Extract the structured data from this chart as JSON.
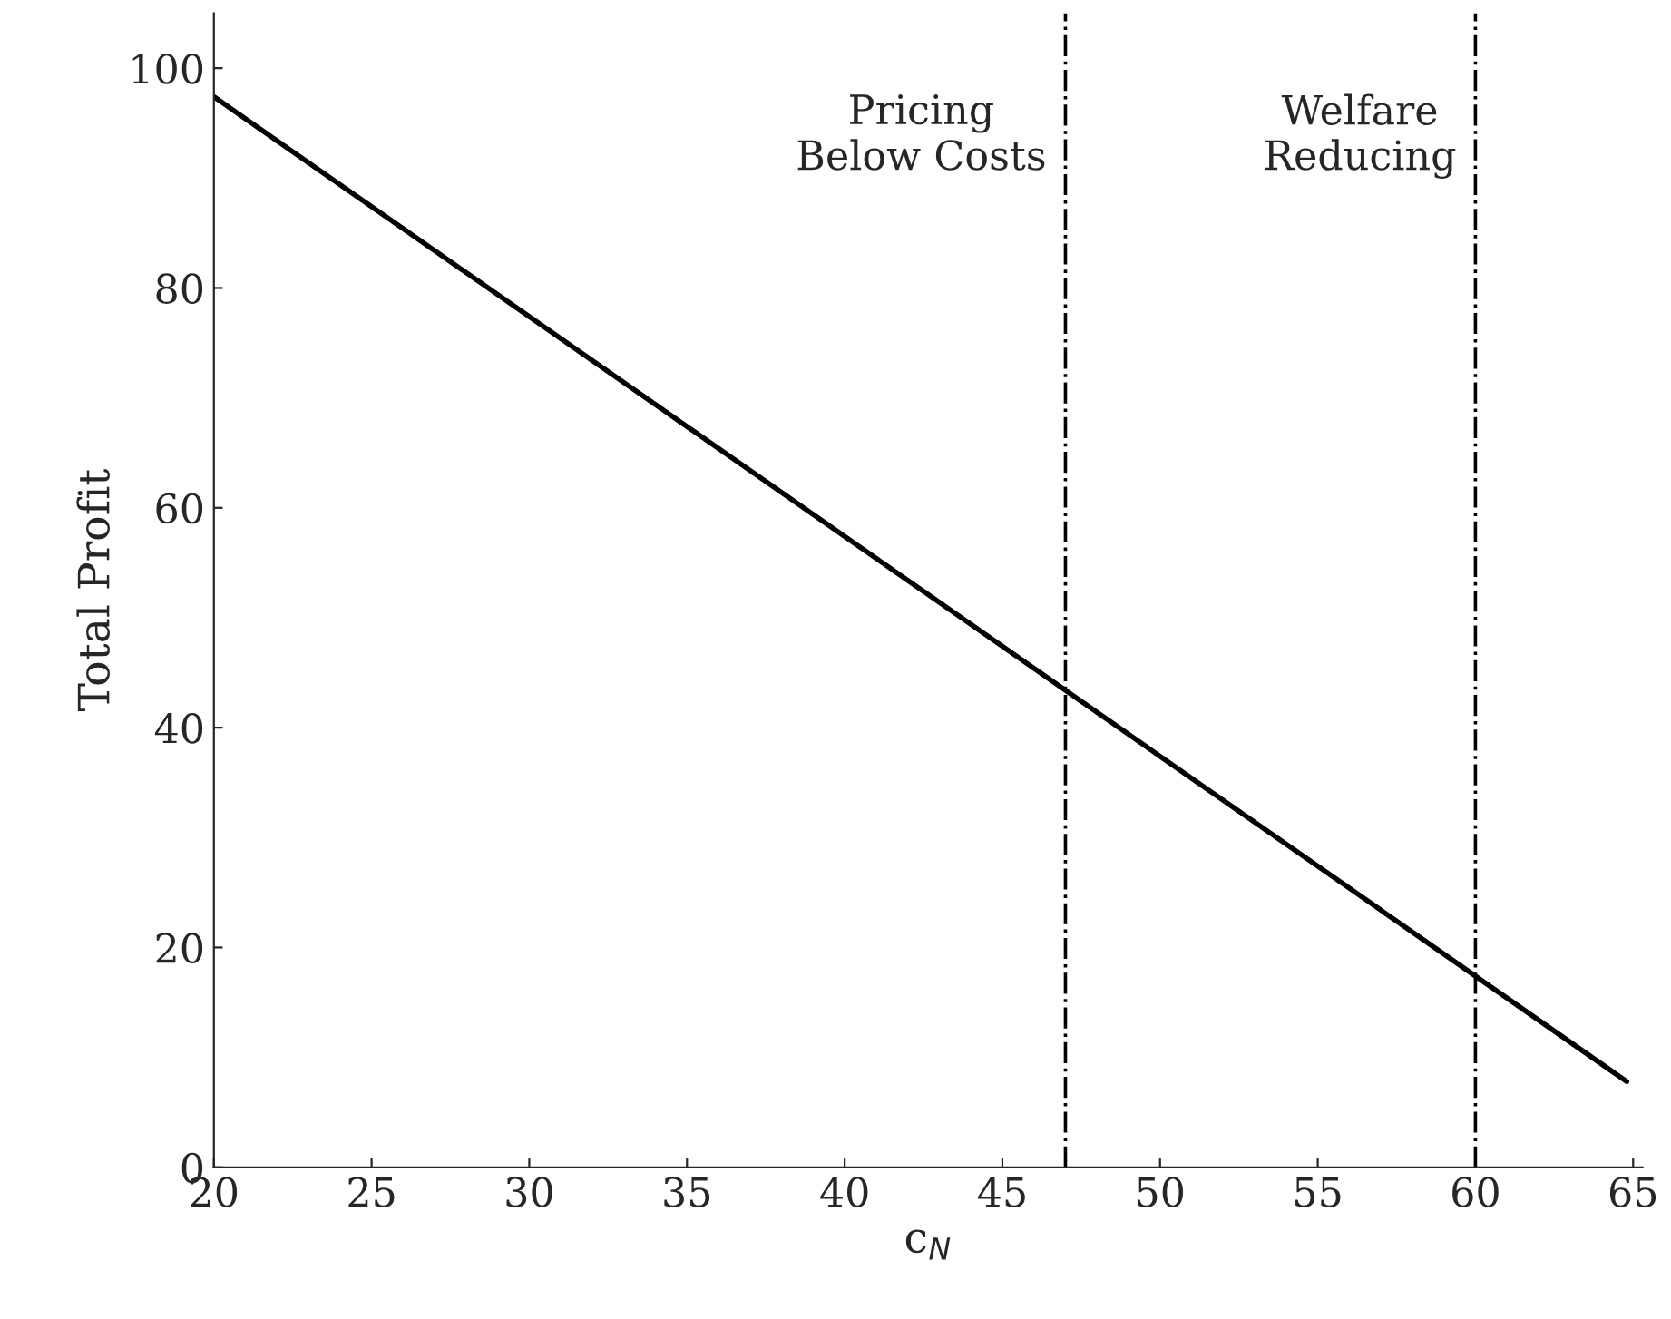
{
  "chart_data": {
    "type": "line",
    "xlabel": "c$_{N}$",
    "ylabel": "Total Profit",
    "series": [
      {
        "color": "#000000",
        "x": [
          20,
          64.8
        ],
        "values": [
          97.4,
          7.8
        ]
      }
    ],
    "xlim": [
      20,
      65.3
    ],
    "ylim": [
      0,
      105
    ],
    "xticks": [
      20,
      25,
      30,
      35,
      40,
      45,
      50,
      55,
      60,
      65
    ],
    "yticks": [
      0,
      20,
      40,
      60,
      80,
      100
    ],
    "ref_lines": [
      {
        "axis": "x",
        "value": 47,
        "label": "Pricing\nBelow Costs",
        "color": "#000000",
        "line_style": "dashdot"
      },
      {
        "axis": "x",
        "value": 60,
        "label": "Welfare\nReducing",
        "color": "#000000",
        "line_style": "dashdot"
      }
    ],
    "grid": false,
    "legend": false,
    "marker": "none",
    "line_style": "solid"
  }
}
